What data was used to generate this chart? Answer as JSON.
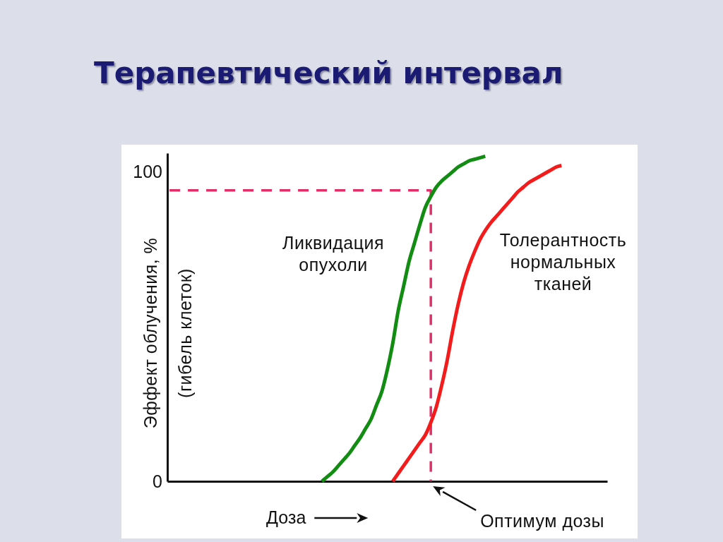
{
  "chart_data": {
    "type": "line",
    "title": "Терапевтический интервал",
    "xlabel": "Доза",
    "ylabel": "Эффект облучения, %\n(гибель клеток)",
    "categories": [
      null,
      null,
      null,
      null,
      null,
      null,
      null,
      null,
      null,
      null,
      null,
      null,
      null,
      null,
      null,
      null,
      null,
      null,
      null,
      null,
      null,
      null,
      null,
      null,
      null,
      null,
      null,
      null,
      null,
      null,
      null,
      null,
      null,
      null,
      null,
      null,
      null,
      null,
      null,
      null,
      null,
      null,
      null,
      null,
      null,
      null,
      null,
      null,
      null,
      null,
      null,
      null,
      null,
      null,
      null,
      null,
      null,
      null,
      null,
      null,
      null,
      null,
      null,
      null,
      null,
      null,
      null,
      null,
      null,
      null,
      null,
      null,
      null,
      null,
      null,
      null,
      null,
      null,
      null,
      null,
      null
    ],
    "series": [
      {
        "name": "Ликвидация опухоли",
        "color": "#128c12",
        "values": [
          null,
          null,
          null,
          null,
          null,
          null,
          null,
          null,
          null,
          null,
          null,
          null,
          null,
          null,
          null,
          null,
          null,
          null,
          null,
          null,
          null,
          null,
          null,
          null,
          null,
          null,
          null,
          null,
          0,
          1.5,
          3,
          5,
          7,
          9,
          11.5,
          14,
          17,
          20,
          24.5,
          29,
          36,
          44.5,
          55,
          63,
          71,
          77,
          83,
          88.5,
          92,
          95,
          97,
          98.5,
          100,
          101.5,
          102.5,
          103.5,
          104,
          104.5,
          105,
          null,
          null,
          null,
          null,
          null,
          null,
          null,
          null,
          null,
          null,
          null,
          null,
          null,
          null,
          null,
          null,
          null,
          null,
          null,
          null,
          null,
          null
        ]
      },
      {
        "name": "Толерантность нормальных тканей",
        "color": "#f31c1c",
        "values": [
          null,
          null,
          null,
          null,
          null,
          null,
          null,
          null,
          null,
          null,
          null,
          null,
          null,
          null,
          null,
          null,
          null,
          null,
          null,
          null,
          null,
          null,
          null,
          null,
          null,
          null,
          null,
          null,
          null,
          null,
          null,
          null,
          null,
          null,
          null,
          null,
          null,
          null,
          null,
          null,
          null,
          0,
          2.5,
          5,
          7.5,
          10,
          12.5,
          15,
          19,
          24,
          31,
          39,
          48.5,
          57,
          64,
          69.5,
          74,
          78,
          81,
          83.5,
          85.5,
          87.5,
          89.5,
          91.5,
          93.5,
          95,
          96.5,
          97.5,
          98.5,
          99.5,
          100.5,
          101.5,
          102,
          null,
          null,
          null,
          null,
          null,
          null,
          null,
          null
        ]
      },
      {
        "type": "step",
        "color": "#e0306a",
        "line_style": "dashed",
        "values": [
          94,
          94,
          94,
          94,
          94,
          94,
          94,
          94,
          94,
          94,
          94,
          94,
          94,
          94,
          94,
          94,
          94,
          94,
          94,
          94,
          94,
          94,
          94,
          94,
          94,
          94,
          94,
          94,
          94,
          94,
          94,
          94,
          94,
          94,
          94,
          94,
          94,
          94,
          94,
          94,
          94,
          94,
          94,
          94,
          94,
          94,
          94,
          94,
          0,
          null,
          null,
          null,
          null,
          null,
          null,
          null,
          null,
          null,
          null,
          null,
          null,
          null,
          null,
          null,
          null,
          null,
          null,
          null,
          null,
          null,
          null,
          null,
          null,
          null,
          null,
          null,
          null,
          null,
          null,
          null,
          null
        ]
      }
    ],
    "ylim": [
      0,
      106
    ],
    "yticks": [
      0,
      100
    ],
    "tick_labels": "y",
    "annotations": [
      "Оптимум дозы"
    ]
  }
}
